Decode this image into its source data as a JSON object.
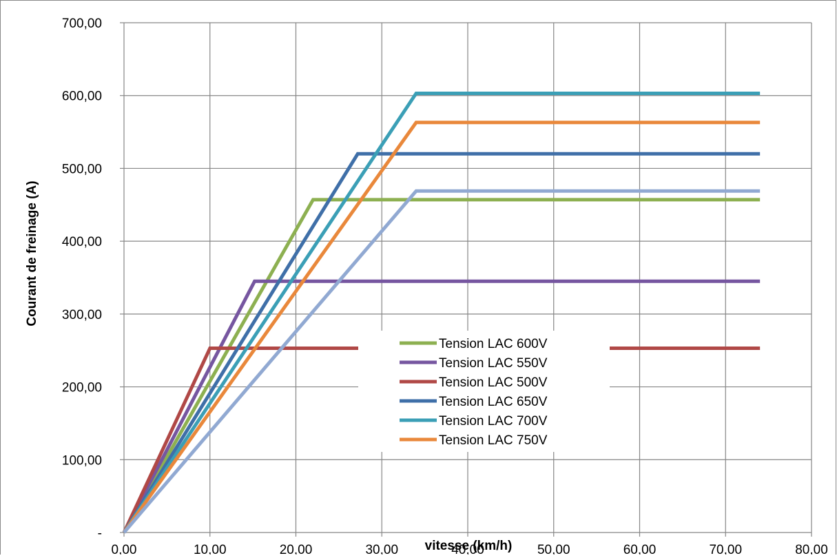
{
  "chart_data": {
    "type": "line",
    "title": "",
    "xlabel": "vitesse (km/h)",
    "ylabel": "Courant de freinage (A)",
    "xlim": [
      0,
      80
    ],
    "ylim": [
      0,
      700
    ],
    "grid": true,
    "legend_placement": "center-bottom",
    "x_ticks": [
      "0,00",
      "10,00",
      "20,00",
      "30,00",
      "40,00",
      "50,00",
      "60,00",
      "70,00",
      "80,00"
    ],
    "y_ticks": [
      "-",
      "100,00",
      "200,00",
      "300,00",
      "400,00",
      "500,00",
      "600,00",
      "700,00"
    ],
    "series": [
      {
        "name": "Tension LAC 600V",
        "color": "#8DB051",
        "points": [
          [
            0,
            0
          ],
          [
            22,
            457
          ],
          [
            74,
            457
          ]
        ]
      },
      {
        "name": "Tension LAC 550V",
        "color": "#7656A0",
        "points": [
          [
            0,
            0
          ],
          [
            15.2,
            345
          ],
          [
            74,
            345
          ]
        ]
      },
      {
        "name": "Tension LAC 500V",
        "color": "#B04846",
        "points": [
          [
            0,
            0
          ],
          [
            10,
            253
          ],
          [
            74,
            253
          ]
        ]
      },
      {
        "name": "Tension LAC 650V",
        "color": "#3F6FA8",
        "points": [
          [
            0,
            0
          ],
          [
            27.2,
            520
          ],
          [
            74,
            520
          ]
        ]
      },
      {
        "name": "Tension LAC 700V",
        "color": "#3B9FB6",
        "points": [
          [
            0,
            0
          ],
          [
            34,
            603
          ],
          [
            74,
            603
          ]
        ]
      },
      {
        "name": "Tension LAC 750V",
        "color": "#E9883B",
        "points": [
          [
            0,
            0
          ],
          [
            34,
            563
          ],
          [
            74,
            563
          ]
        ]
      },
      {
        "name": "",
        "color": "#91A9D2",
        "points": [
          [
            0,
            0
          ],
          [
            34,
            469
          ],
          [
            74,
            469
          ]
        ]
      }
    ]
  }
}
